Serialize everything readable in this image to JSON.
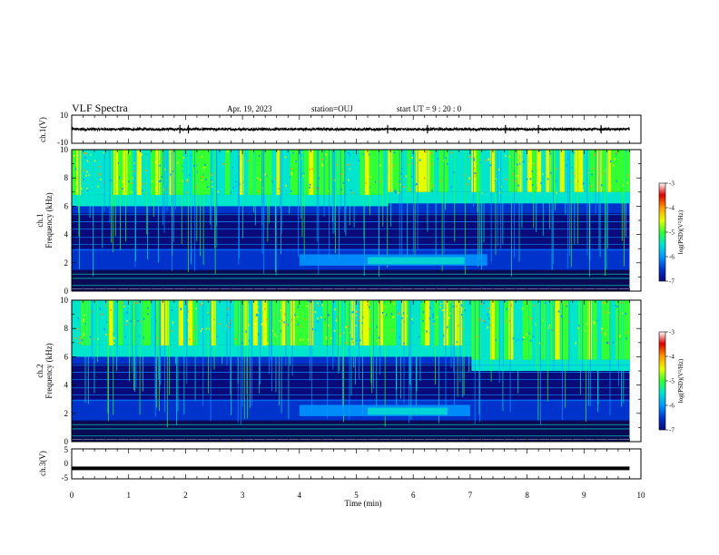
{
  "header": {
    "title": "VLF Spectra",
    "date": "Apr. 19, 2023",
    "station": "station=OUJ",
    "start_ut": "start  UT =   9  : 20 : 0"
  },
  "colors": {
    "colormap": [
      "#0a0a7a",
      "#0033cc",
      "#0099ff",
      "#00e5cc",
      "#33ff33",
      "#e6ff00",
      "#ff9900",
      "#dd0000",
      "#ffffff"
    ],
    "low_band": "#0b0b55",
    "trace": "#000000"
  },
  "chart_data": [
    {
      "type": "line",
      "panel": "ch1-waveform",
      "ylabel": "ch.1(V)",
      "ylim": [
        -10,
        10
      ],
      "yticks": [
        "10",
        "-10"
      ],
      "x_range": [
        0,
        9.8
      ],
      "mean_value": 0,
      "spikes_at_min": [
        1.9,
        2.05,
        5.55,
        6.25,
        7.62,
        8.2,
        9.3
      ]
    },
    {
      "type": "heatmap",
      "panel": "ch1-spectrogram",
      "ylabel": "Frequency (kHz)",
      "channel": "ch.1",
      "ylim": [
        0,
        10
      ],
      "yticks": [
        "0",
        "2",
        "4",
        "6",
        "8",
        "10"
      ],
      "x_range": [
        0,
        9.8
      ],
      "features": {
        "bright_band_khz": [
          6,
          10
        ],
        "bright_band_lower_edge_khz": {
          "before_5_5_min": 6.0,
          "after_5_5_min": 6.2
        },
        "dark_band_khz": [
          3,
          5.5
        ],
        "enhanced_band_khz": [
          1.8,
          2.6
        ],
        "enhanced_band_min": [
          4.0,
          7.3
        ]
      },
      "colorbar": {
        "label": "log(PSD)(V²/Hz)",
        "ticks": [
          "-3",
          "-4",
          "-5",
          "-6",
          "-7"
        ],
        "range": [
          -7,
          -3
        ]
      }
    },
    {
      "type": "heatmap",
      "panel": "ch2-spectrogram",
      "ylabel": "Frequency (kHz)",
      "channel": "ch.2",
      "ylim": [
        0,
        10
      ],
      "yticks": [
        "0",
        "2",
        "4",
        "6",
        "8",
        "10"
      ],
      "x_range": [
        0,
        9.8
      ],
      "features": {
        "bright_band_khz": [
          6,
          10
        ],
        "bright_band_lower_edge_khz": {
          "before_5_5_min": 6.0,
          "after_7_min": 5.0
        },
        "dark_band_khz": [
          3,
          5.5
        ],
        "enhanced_band_khz": [
          1.8,
          2.6
        ],
        "enhanced_band_min": [
          4.0,
          7.0
        ]
      },
      "colorbar": {
        "label": "log(PSD)(V²/Hz)",
        "ticks": [
          "-3",
          "-4",
          "-5",
          "-6",
          "-7"
        ],
        "range": [
          -7,
          -3
        ]
      }
    },
    {
      "type": "line",
      "panel": "ch3-waveform",
      "ylabel": "ch.3(V)",
      "ylim": [
        -5,
        5
      ],
      "yticks": [
        "5",
        "0",
        "-5"
      ],
      "x_range": [
        0,
        9.8
      ],
      "mean_value": -1.5
    }
  ],
  "xaxis": {
    "label": "Time (min)",
    "ticks": [
      "0",
      "1",
      "2",
      "3",
      "4",
      "5",
      "6",
      "7",
      "8",
      "9",
      "10"
    ],
    "range": [
      0,
      10
    ]
  }
}
